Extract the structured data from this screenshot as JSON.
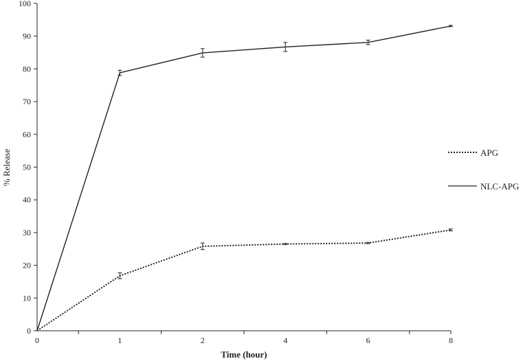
{
  "chart_data": {
    "type": "line",
    "title": "",
    "xlabel": "Time (hour)",
    "ylabel": "% Release",
    "categories": [
      "0",
      "1",
      "2",
      "4",
      "6",
      "8"
    ],
    "ylim": [
      0,
      100
    ],
    "yticks": [
      0,
      10,
      20,
      30,
      40,
      50,
      60,
      70,
      80,
      90,
      100
    ],
    "grid": false,
    "legend_position": "right",
    "series": [
      {
        "name": "APG",
        "style": "dotted",
        "color": "#222222",
        "values": [
          0,
          16.8,
          25.8,
          26.5,
          26.8,
          30.8
        ],
        "errors": [
          0,
          0.9,
          1.0,
          0.2,
          0.2,
          0.3
        ]
      },
      {
        "name": "NLC-APG",
        "style": "solid",
        "color": "#222222",
        "values": [
          0,
          78.8,
          84.9,
          86.7,
          88.1,
          93.1
        ],
        "errors": [
          0,
          0.8,
          1.3,
          1.4,
          0.7,
          0.2
        ]
      }
    ]
  }
}
